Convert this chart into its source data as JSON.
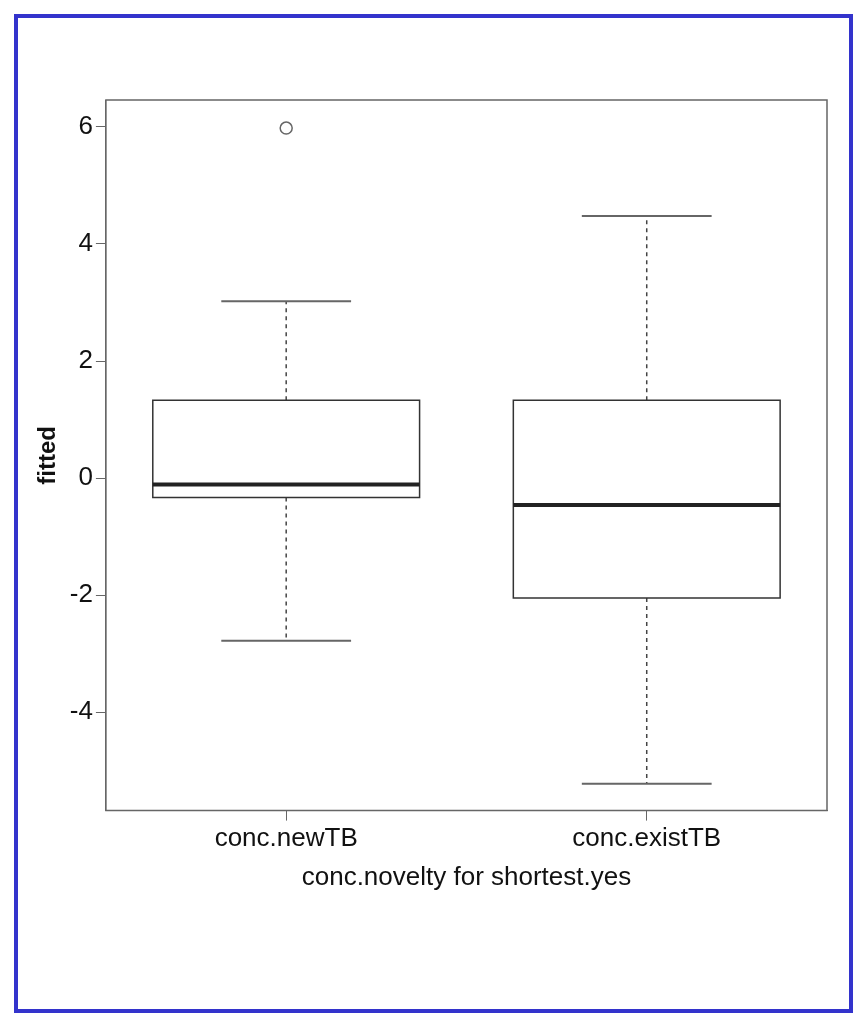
{
  "chart_data": {
    "type": "box",
    "xlabel": "conc.novelty for shortest.yes",
    "ylabel": "fitted",
    "categories": [
      "conc.newTB",
      "conc.existTB"
    ],
    "boxes": [
      {
        "low": -2.78,
        "q1": -0.33,
        "median": -0.11,
        "q3": 1.33,
        "high": 3.02,
        "outliers": [
          5.98
        ]
      },
      {
        "low": -5.22,
        "q1": -2.05,
        "median": -0.46,
        "q3": 1.33,
        "high": 4.48
      }
    ],
    "ylim": [
      -5.68,
      6.46
    ],
    "yticks": [
      -4,
      -2,
      0,
      2,
      4,
      6
    ]
  }
}
